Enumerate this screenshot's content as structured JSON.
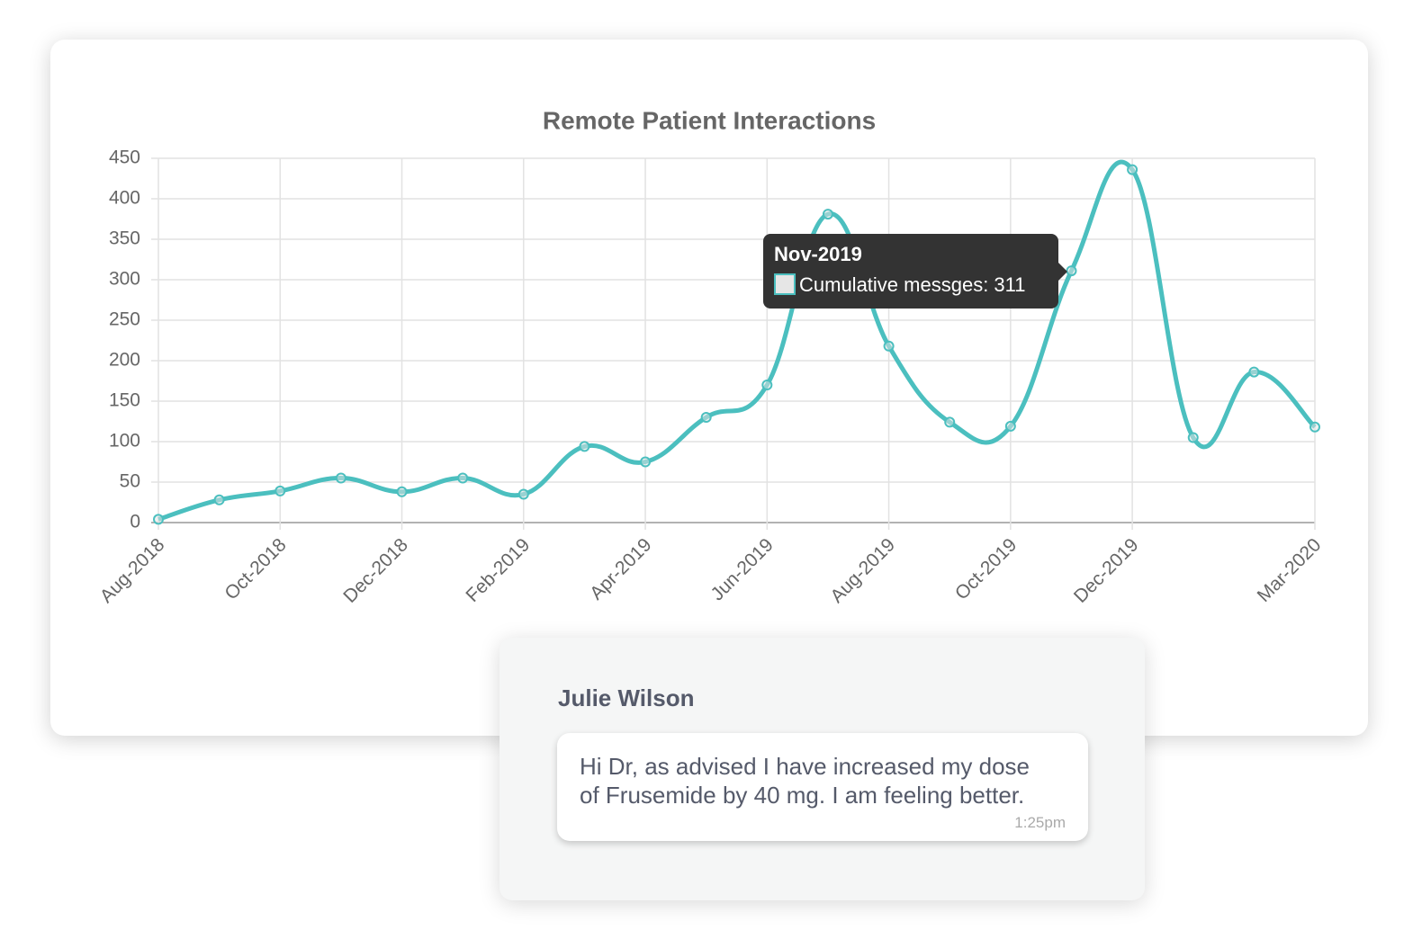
{
  "chart_data": {
    "type": "line",
    "title": "Remote Patient Interactions",
    "categories": [
      "Aug-2018",
      null,
      "Oct-2018",
      null,
      "Dec-2018",
      null,
      "Feb-2019",
      null,
      "Apr-2019",
      null,
      "Jun-2019",
      null,
      "Aug-2019",
      null,
      "Oct-2019",
      null,
      "Dec-2019",
      null,
      null,
      "Mar-2020"
    ],
    "series": [
      {
        "color": "#4bbfbf",
        "values": [
          4,
          28,
          39,
          55,
          38,
          55,
          35,
          94,
          75,
          130,
          170,
          381,
          218,
          124,
          119,
          311,
          436,
          105,
          186,
          118
        ]
      }
    ],
    "ylim": [
      0,
      450
    ],
    "yticks": [
      0,
      50,
      100,
      150,
      200,
      250,
      300,
      350,
      400,
      450
    ],
    "grid": true,
    "tooltip": {
      "title": "Nov-2019",
      "label": "Cumulative messges: 311"
    }
  },
  "message": {
    "sender": "Julie Wilson",
    "lines": [
      "Hi Dr, as advised I have increased my dose",
      "of Frusemide by 40 mg. I am feeling better."
    ],
    "time": "1:25pm"
  }
}
